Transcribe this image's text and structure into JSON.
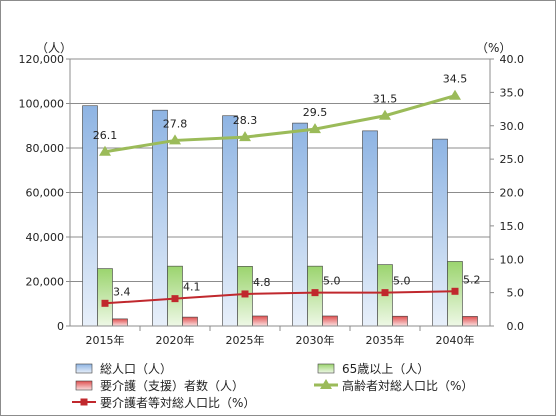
{
  "chart_data": {
    "type": "bar",
    "categories": [
      "2015年",
      "2020年",
      "2025年",
      "2030年",
      "2035年",
      "2040年"
    ],
    "y_left_unit": "（人）",
    "y_right_unit": "（%）",
    "ylim_left": [
      0,
      120000
    ],
    "ylim_right": [
      0,
      40
    ],
    "y_left_ticks": [
      "0",
      "20,000",
      "40,000",
      "60,000",
      "80,000",
      "100,000",
      "120,000"
    ],
    "y_right_ticks": [
      "0.0",
      "5.0",
      "10.0",
      "15.0",
      "20.0",
      "25.0",
      "30.0",
      "35.0",
      "40.0"
    ],
    "grid": "horizontal",
    "legend_position": "bottom",
    "series": [
      {
        "name": "総人口（人）",
        "type": "bar",
        "axis": "left",
        "color": "#8eb4e3",
        "values": [
          99000,
          97000,
          94500,
          91200,
          87700,
          84000
        ]
      },
      {
        "name": "65歳以上（人）",
        "type": "bar",
        "axis": "left",
        "color": "#9bd46e",
        "values": [
          25800,
          26900,
          26800,
          26900,
          27600,
          29000
        ]
      },
      {
        "name": "要介護（支援）者数（人）",
        "type": "bar",
        "axis": "left",
        "color": "#f08080",
        "values": [
          3200,
          4000,
          4500,
          4500,
          4400,
          4300
        ]
      },
      {
        "name": "高齢者対総人口比（%）",
        "type": "line",
        "axis": "right",
        "color": "#9bbb59",
        "values": [
          26.1,
          27.8,
          28.3,
          29.5,
          31.5,
          34.5
        ],
        "labels": [
          "26.1",
          "27.8",
          "28.3",
          "29.5",
          "31.5",
          "34.5"
        ]
      },
      {
        "name": "要介護者等対総人口比（%）",
        "type": "line",
        "axis": "right",
        "color": "#c0282d",
        "values": [
          3.4,
          4.1,
          4.8,
          5.0,
          5.0,
          5.2
        ],
        "labels": [
          "3.4",
          "4.1",
          "4.8",
          "5.0",
          "5.0",
          "5.2"
        ]
      }
    ]
  }
}
